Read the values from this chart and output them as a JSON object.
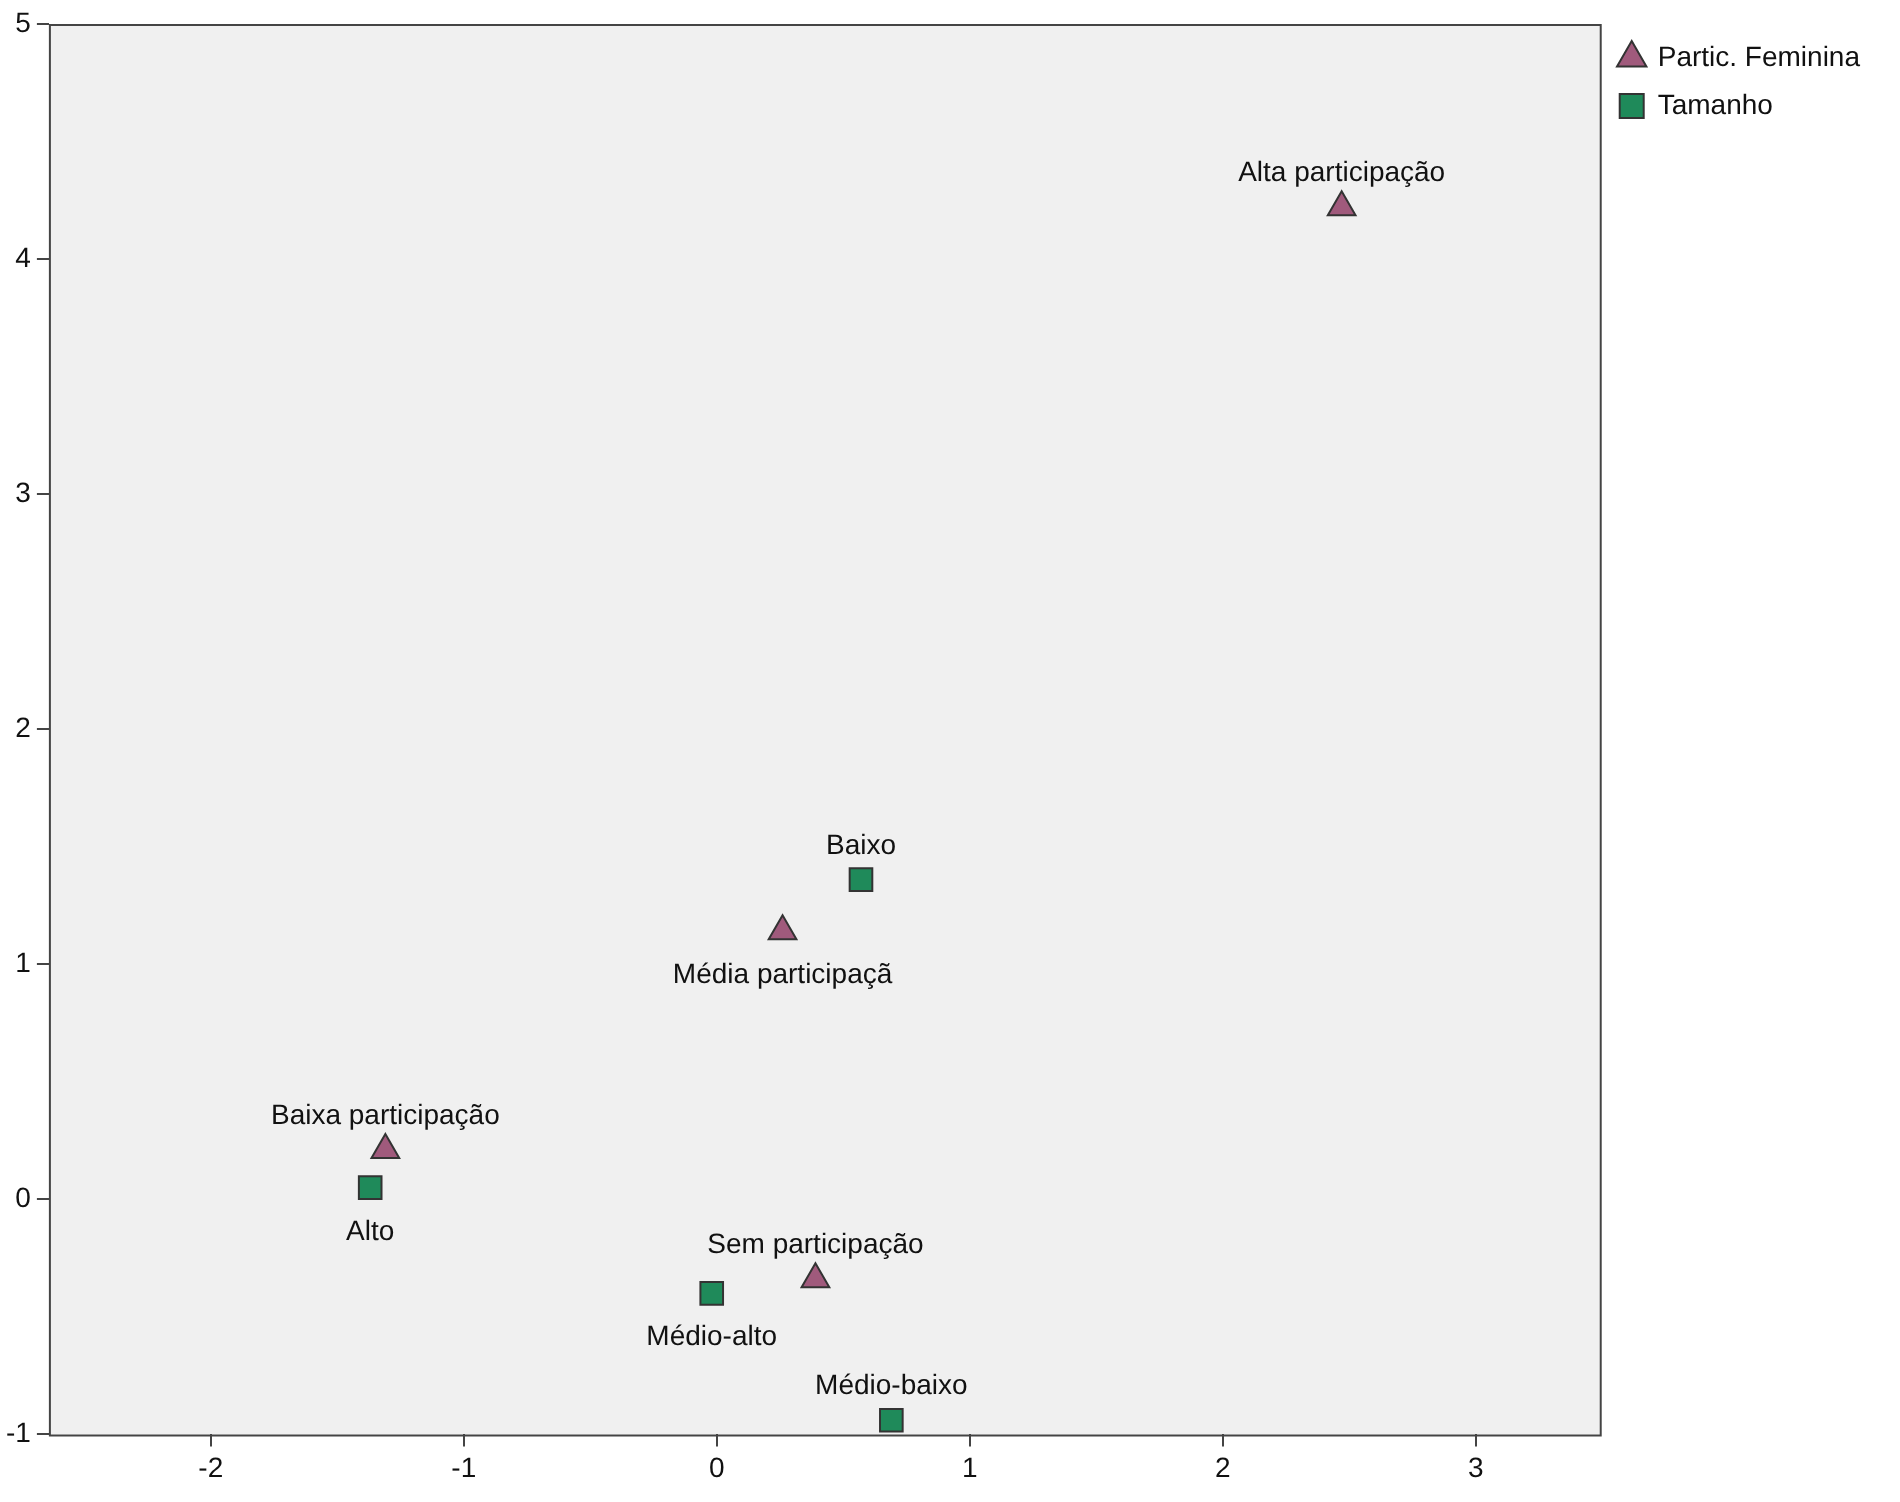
{
  "chart_data": {
    "type": "scatter",
    "series": [
      {
        "name": "Partic. Feminina",
        "color": "#a05a7c",
        "marker": "triangle",
        "x": [
          2.47,
          0.26,
          -1.31,
          0.39
        ],
        "values": [
          4.22,
          1.14,
          0.21,
          -0.34
        ]
      },
      {
        "name": "Tamanho",
        "color": "#1f8a5a",
        "marker": "square",
        "x": [
          0.57,
          -1.37,
          -0.02,
          0.69
        ],
        "values": [
          1.36,
          0.05,
          -0.4,
          -0.94
        ]
      }
    ],
    "annotations": [
      {
        "text": "Alta participação",
        "x": 2.47,
        "y": 4.22
      },
      {
        "text": "Baixo",
        "x": 0.57,
        "y": 1.36
      },
      {
        "text": "Média participaçã",
        "x": 0.26,
        "y": 1.14
      },
      {
        "text": "Alto",
        "x": -1.37,
        "y": 0.05
      },
      {
        "text": "Baixa participação",
        "x": -1.31,
        "y": 0.21
      },
      {
        "text": "Sem participação",
        "x": 0.39,
        "y": -0.34
      },
      {
        "text": "Médio-alto",
        "x": -0.02,
        "y": -0.4
      },
      {
        "text": "Médio-baixo",
        "x": 0.69,
        "y": -0.94
      }
    ],
    "xlim": [
      -2.64,
      3.49
    ],
    "xticks": [
      -2,
      -1,
      0,
      1,
      2,
      3
    ],
    "ylim": [
      -1,
      5
    ],
    "yticks": [
      -1,
      0,
      1,
      2,
      3,
      4,
      5
    ],
    "grid": false,
    "legend": "top right"
  }
}
